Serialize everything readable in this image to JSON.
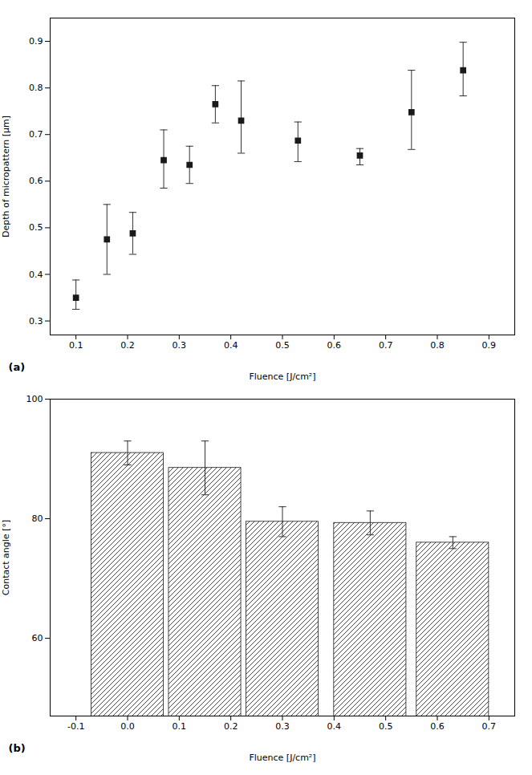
{
  "chart_data": [
    {
      "type": "scatter",
      "xlabel": "Fluence [J/cm²]",
      "ylabel": "Depth of micropattern [µm]",
      "x": [
        0.1,
        0.16,
        0.21,
        0.27,
        0.32,
        0.37,
        0.42,
        0.53,
        0.65,
        0.75,
        0.85
      ],
      "values": [
        0.35,
        0.475,
        0.488,
        0.645,
        0.635,
        0.765,
        0.73,
        0.687,
        0.655,
        0.748,
        0.838
      ],
      "yerr_lo": [
        0.025,
        0.075,
        0.045,
        0.06,
        0.04,
        0.04,
        0.07,
        0.045,
        0.02,
        0.08,
        0.055
      ],
      "yerr_hi": [
        0.038,
        0.075,
        0.045,
        0.065,
        0.04,
        0.04,
        0.085,
        0.04,
        0.015,
        0.09,
        0.06
      ],
      "xlim": [
        0.05,
        0.95
      ],
      "ylim": [
        0.27,
        0.95
      ],
      "xticks": [
        0.1,
        0.2,
        0.3,
        0.4,
        0.5,
        0.6,
        0.7,
        0.8,
        0.9
      ],
      "yticks": [
        0.3,
        0.4,
        0.5,
        0.6,
        0.7,
        0.8,
        0.9
      ],
      "color": "#1a1a1a",
      "marker": "square",
      "grid": false,
      "annotations": [
        "(a)"
      ]
    },
    {
      "type": "bar",
      "xlabel": "Fluence [J/cm²]",
      "ylabel": "Contact angle [°]",
      "x": [
        0.0,
        0.15,
        0.3,
        0.47,
        0.63
      ],
      "values": [
        91.0,
        88.5,
        79.5,
        79.3,
        76.0
      ],
      "yerr": [
        2.0,
        4.5,
        2.5,
        2.0,
        1.0
      ],
      "xlim": [
        -0.15,
        0.75
      ],
      "ylim": [
        47,
        100
      ],
      "xticks": [
        -0.1,
        {
          "value": 0.0,
          "label": "0.0"
        },
        0.1,
        0.2,
        0.3,
        0.4,
        0.5,
        0.6,
        0.7
      ],
      "yticks": [
        60,
        80,
        100
      ],
      "color": "#1a1a1a",
      "grid": false,
      "annotations": [
        "(b)"
      ]
    }
  ]
}
